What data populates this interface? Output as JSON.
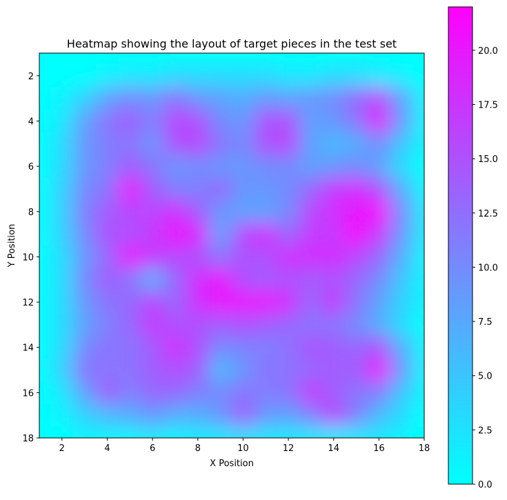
{
  "chart_data": {
    "type": "heatmap",
    "title": "Heatmap showing the layout of target pieces in the test set",
    "xlabel": "X Position",
    "ylabel": "Y Position",
    "xlim": [
      1,
      18
    ],
    "ylim": [
      18,
      1
    ],
    "x_ticks": [
      2,
      4,
      6,
      8,
      10,
      12,
      14,
      16,
      18
    ],
    "y_ticks": [
      2,
      4,
      6,
      8,
      10,
      12,
      14,
      16,
      18
    ],
    "y_axis_inverted": true,
    "colormap": "cool",
    "colormap_colors": [
      "#00ffff",
      "#ff00ff"
    ],
    "interpolation": "smooth",
    "colorbar": {
      "placement": "right",
      "range": [
        0,
        22
      ],
      "ticks": [
        0.0,
        2.5,
        5.0,
        7.5,
        10.0,
        12.5,
        15.0,
        17.5,
        20.0
      ],
      "tick_labels": [
        "0.0",
        "2.5",
        "5.0",
        "7.5",
        "10.0",
        "12.5",
        "15.0",
        "17.5",
        "20.0"
      ]
    },
    "x": [
      1,
      2,
      3,
      4,
      5,
      6,
      7,
      8,
      9,
      10,
      11,
      12,
      13,
      14,
      15,
      16,
      17,
      18
    ],
    "y": [
      1,
      2,
      3,
      4,
      5,
      6,
      7,
      8,
      9,
      10,
      11,
      12,
      13,
      14,
      15,
      16,
      17,
      18
    ],
    "values": [
      [
        0,
        0,
        0,
        0,
        0,
        0,
        0,
        0,
        0,
        0,
        0,
        0,
        0,
        0,
        0,
        0,
        0,
        0
      ],
      [
        0,
        0,
        0,
        1,
        2,
        2,
        3,
        3,
        3,
        3,
        3,
        2,
        2,
        3,
        3,
        2,
        1,
        0
      ],
      [
        0,
        1,
        4,
        8,
        10,
        9,
        12,
        9,
        8,
        7,
        9,
        8,
        9,
        10,
        13,
        16,
        8,
        1
      ],
      [
        0,
        2,
        8,
        12,
        14,
        11,
        16,
        15,
        10,
        9,
        15,
        15,
        8,
        9,
        12,
        19,
        9,
        1
      ],
      [
        0,
        3,
        9,
        11,
        12,
        9,
        15,
        16,
        12,
        10,
        15,
        16,
        8,
        6,
        7,
        10,
        5,
        1
      ],
      [
        0,
        3,
        9,
        11,
        14,
        12,
        9,
        10,
        9,
        9,
        10,
        10,
        8,
        9,
        10,
        8,
        3,
        0
      ],
      [
        0,
        4,
        10,
        12,
        20,
        14,
        11,
        11,
        13,
        9,
        9,
        10,
        13,
        17,
        18,
        15,
        7,
        1
      ],
      [
        0,
        4,
        11,
        14,
        16,
        16,
        18,
        14,
        9,
        8,
        8,
        10,
        16,
        18,
        20,
        21,
        10,
        2
      ],
      [
        0,
        4,
        10,
        15,
        15,
        17,
        20,
        19,
        8,
        16,
        18,
        13,
        17,
        17,
        21,
        17,
        9,
        2
      ],
      [
        0,
        3,
        9,
        13,
        20,
        17,
        16,
        15,
        12,
        15,
        15,
        18,
        18,
        18,
        16,
        13,
        7,
        1
      ],
      [
        0,
        3,
        10,
        14,
        12,
        7,
        13,
        18,
        20,
        15,
        14,
        15,
        14,
        15,
        13,
        10,
        5,
        1
      ],
      [
        0,
        3,
        9,
        12,
        13,
        16,
        13,
        18,
        20,
        20,
        20,
        18,
        13,
        17,
        12,
        8,
        4,
        1
      ],
      [
        0,
        3,
        8,
        11,
        13,
        17,
        15,
        15,
        14,
        15,
        14,
        13,
        12,
        12,
        10,
        7,
        3,
        0
      ],
      [
        0,
        3,
        10,
        12,
        12,
        14,
        18,
        15,
        10,
        11,
        11,
        12,
        15,
        14,
        13,
        15,
        7,
        1
      ],
      [
        0,
        4,
        12,
        12,
        12,
        14,
        15,
        14,
        6,
        9,
        12,
        12,
        13,
        14,
        14,
        20,
        9,
        1
      ],
      [
        0,
        2,
        8,
        14,
        11,
        13,
        13,
        11,
        10,
        12,
        11,
        12,
        17,
        14,
        12,
        11,
        5,
        1
      ],
      [
        0,
        1,
        4,
        6,
        7,
        9,
        7,
        7,
        9,
        14,
        9,
        8,
        11,
        16,
        11,
        6,
        3,
        0
      ],
      [
        0,
        0,
        1,
        1,
        1,
        2,
        1,
        2,
        2,
        3,
        2,
        2,
        2,
        2,
        2,
        2,
        1,
        0
      ]
    ]
  }
}
